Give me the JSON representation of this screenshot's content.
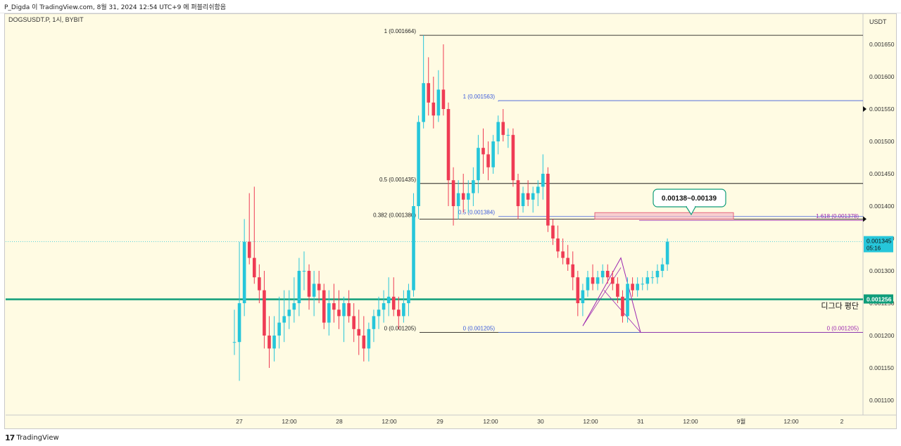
{
  "header": {
    "author_line": "P_Digda 이 TradingView.com, 8월 31, 2024 12:54 UTC+9 에 퍼블리쉬함음"
  },
  "symbol_label": "DOGSUSDT.P, 1시, BYBIT",
  "currency_label": "USDT",
  "footer": {
    "brand": "TradingView"
  },
  "colors": {
    "up": "#26c6da",
    "down": "#ef3b54",
    "avg_line": "#0f9d7a",
    "fib_black": "#000000",
    "fib_blue": "#3b5bdb",
    "fib_purple": "#9c27b0",
    "zone": "#f5b7c4",
    "plot_bg": "#fffbe3"
  },
  "chart_data": {
    "type": "candlestick",
    "ylim": [
      0.00107,
      0.00168
    ],
    "yticks": [
      "0.001650",
      "0.001600",
      "0.001550",
      "0.001500",
      "0.001450",
      "0.001400",
      "0.001350",
      "0.001300",
      "0.001250",
      "0.001200",
      "0.001150",
      "0.001100"
    ],
    "xticks": [
      "27",
      "12:00",
      "28",
      "12:00",
      "29",
      "12:00",
      "30",
      "12:00",
      "31",
      "12:00",
      "9월",
      "12:00",
      "2"
    ],
    "last_price": {
      "label": "0.001345",
      "countdown": "05:16",
      "value": 0.001345
    },
    "avg_line": {
      "label": "0.001256",
      "value": 0.001256,
      "annotation": "디그다 평단"
    },
    "target_zone": {
      "label": "0.00138~0.00139",
      "low": 0.00138,
      "high": 0.00139
    },
    "fib_black": [
      {
        "label": "1 (0.001664)",
        "value": 0.001664
      },
      {
        "label": "0.5 (0.001435)",
        "value": 0.001435
      },
      {
        "label": "0.382 (0.001380)",
        "value": 0.00138
      },
      {
        "label": "0 (0.001205)",
        "value": 0.001205
      }
    ],
    "fib_blue": [
      {
        "label": "1 (0.001563)",
        "value": 0.001563
      },
      {
        "label": "0.5 (0.001384)",
        "value": 0.001384
      },
      {
        "label": "0 (0.001205)",
        "value": 0.001205
      }
    ],
    "fib_ext": [
      {
        "label": "1.618 (0.001378)",
        "value": 0.001378
      },
      {
        "label": "0 (0.001205)",
        "value": 0.001205
      }
    ],
    "candles": [
      [
        0.00119,
        0.00124,
        0.00117,
        0.00119
      ],
      [
        0.00119,
        0.001345,
        0.00113,
        0.00125
      ],
      [
        0.00125,
        0.00138,
        0.00123,
        0.001345
      ],
      [
        0.001345,
        0.00142,
        0.00131,
        0.00132
      ],
      [
        0.00132,
        0.00143,
        0.00128,
        0.00129
      ],
      [
        0.00129,
        0.00131,
        0.00125,
        0.00127
      ],
      [
        0.00127,
        0.0013,
        0.00118,
        0.0012
      ],
      [
        0.0012,
        0.00123,
        0.00115,
        0.00118
      ],
      [
        0.00118,
        0.00123,
        0.00116,
        0.0012
      ],
      [
        0.0012,
        0.00126,
        0.00118,
        0.00122
      ],
      [
        0.00122,
        0.00127,
        0.00119,
        0.00123
      ],
      [
        0.00123,
        0.00127,
        0.00121,
        0.00124
      ],
      [
        0.00124,
        0.00129,
        0.00122,
        0.00125
      ],
      [
        0.00125,
        0.00132,
        0.00123,
        0.0013
      ],
      [
        0.0013,
        0.00133,
        0.00127,
        0.0013
      ],
      [
        0.0013,
        0.00131,
        0.00124,
        0.00126
      ],
      [
        0.00126,
        0.0013,
        0.00123,
        0.00128
      ],
      [
        0.00128,
        0.0013,
        0.00125,
        0.00127
      ],
      [
        0.00127,
        0.00128,
        0.00121,
        0.00122
      ],
      [
        0.00122,
        0.00127,
        0.0012,
        0.00125
      ],
      [
        0.00125,
        0.00128,
        0.00122,
        0.00124
      ],
      [
        0.00124,
        0.00127,
        0.00121,
        0.00123
      ],
      [
        0.00123,
        0.00126,
        0.00119,
        0.00125
      ],
      [
        0.00125,
        0.00127,
        0.00122,
        0.00123
      ],
      [
        0.00123,
        0.00125,
        0.00119,
        0.00121
      ],
      [
        0.00121,
        0.00124,
        0.00117,
        0.0012
      ],
      [
        0.0012,
        0.00123,
        0.00116,
        0.00118
      ],
      [
        0.00118,
        0.00122,
        0.00116,
        0.00121
      ],
      [
        0.00121,
        0.00124,
        0.00119,
        0.00123
      ],
      [
        0.00123,
        0.00126,
        0.00121,
        0.00124
      ],
      [
        0.00124,
        0.00127,
        0.00122,
        0.00125
      ],
      [
        0.00125,
        0.00129,
        0.00123,
        0.00126
      ],
      [
        0.00126,
        0.00129,
        0.00123,
        0.00124
      ],
      [
        0.00124,
        0.00126,
        0.00121,
        0.00123
      ],
      [
        0.00123,
        0.00127,
        0.00122,
        0.00125
      ],
      [
        0.00125,
        0.00128,
        0.00123,
        0.00127
      ],
      [
        0.00127,
        0.00142,
        0.00126,
        0.0014
      ],
      [
        0.0014,
        0.00154,
        0.00138,
        0.00153
      ],
      [
        0.00153,
        0.001664,
        0.00152,
        0.00159
      ],
      [
        0.00159,
        0.00163,
        0.00154,
        0.00156
      ],
      [
        0.00156,
        0.0016,
        0.00152,
        0.00154
      ],
      [
        0.00154,
        0.00161,
        0.00153,
        0.00158
      ],
      [
        0.00158,
        0.00165,
        0.00154,
        0.00155
      ],
      [
        0.00155,
        0.00156,
        0.0014,
        0.00144
      ],
      [
        0.00144,
        0.00146,
        0.00137,
        0.0014
      ],
      [
        0.0014,
        0.00144,
        0.00138,
        0.00142
      ],
      [
        0.00142,
        0.00145,
        0.00139,
        0.00141
      ],
      [
        0.00141,
        0.00144,
        0.00139,
        0.00142
      ],
      [
        0.00142,
        0.00146,
        0.0014,
        0.00144
      ],
      [
        0.00144,
        0.00151,
        0.00142,
        0.00149
      ],
      [
        0.00149,
        0.00152,
        0.00145,
        0.00148
      ],
      [
        0.00148,
        0.0015,
        0.00144,
        0.00146
      ],
      [
        0.00146,
        0.00151,
        0.00145,
        0.0015
      ],
      [
        0.0015,
        0.00154,
        0.00148,
        0.00153
      ],
      [
        0.00153,
        0.00155,
        0.0015,
        0.00151
      ],
      [
        0.00151,
        0.00152,
        0.00149,
        0.00151
      ],
      [
        0.00151,
        0.00152,
        0.00143,
        0.00144
      ],
      [
        0.00144,
        0.00145,
        0.00138,
        0.0014
      ],
      [
        0.0014,
        0.00143,
        0.00139,
        0.00142
      ],
      [
        0.00142,
        0.00144,
        0.0014,
        0.00141
      ],
      [
        0.00141,
        0.00143,
        0.00139,
        0.00142
      ],
      [
        0.00142,
        0.00144,
        0.0014,
        0.00143
      ],
      [
        0.00143,
        0.00148,
        0.00141,
        0.00145
      ],
      [
        0.00145,
        0.00146,
        0.00136,
        0.00137
      ],
      [
        0.00137,
        0.00138,
        0.00134,
        0.00135
      ],
      [
        0.00135,
        0.00137,
        0.00132,
        0.00133
      ],
      [
        0.00133,
        0.00135,
        0.00131,
        0.00132
      ],
      [
        0.00132,
        0.00134,
        0.0013,
        0.00131
      ],
      [
        0.00131,
        0.00133,
        0.00127,
        0.00129
      ],
      [
        0.00129,
        0.0013,
        0.00123,
        0.00125
      ],
      [
        0.00125,
        0.00128,
        0.00123,
        0.00127
      ],
      [
        0.00127,
        0.0013,
        0.00126,
        0.00129
      ],
      [
        0.00129,
        0.00131,
        0.00127,
        0.00128
      ],
      [
        0.00128,
        0.0013,
        0.00127,
        0.00129
      ],
      [
        0.00129,
        0.00131,
        0.00128,
        0.0013
      ],
      [
        0.0013,
        0.00131,
        0.00128,
        0.00129
      ],
      [
        0.00129,
        0.0013,
        0.00127,
        0.00128
      ],
      [
        0.00128,
        0.00129,
        0.00125,
        0.00126
      ],
      [
        0.00126,
        0.00127,
        0.00122,
        0.00123
      ],
      [
        0.00123,
        0.00129,
        0.00122,
        0.00128
      ],
      [
        0.00128,
        0.00129,
        0.00126,
        0.00127
      ],
      [
        0.00127,
        0.00129,
        0.00126,
        0.00128
      ],
      [
        0.00128,
        0.00129,
        0.00127,
        0.00128
      ],
      [
        0.00128,
        0.0013,
        0.00127,
        0.00129
      ],
      [
        0.00129,
        0.0013,
        0.00128,
        0.00129
      ],
      [
        0.00129,
        0.00131,
        0.00128,
        0.0013
      ],
      [
        0.0013,
        0.00132,
        0.00129,
        0.00131
      ],
      [
        0.00131,
        0.00135,
        0.0013,
        0.001345
      ]
    ]
  }
}
